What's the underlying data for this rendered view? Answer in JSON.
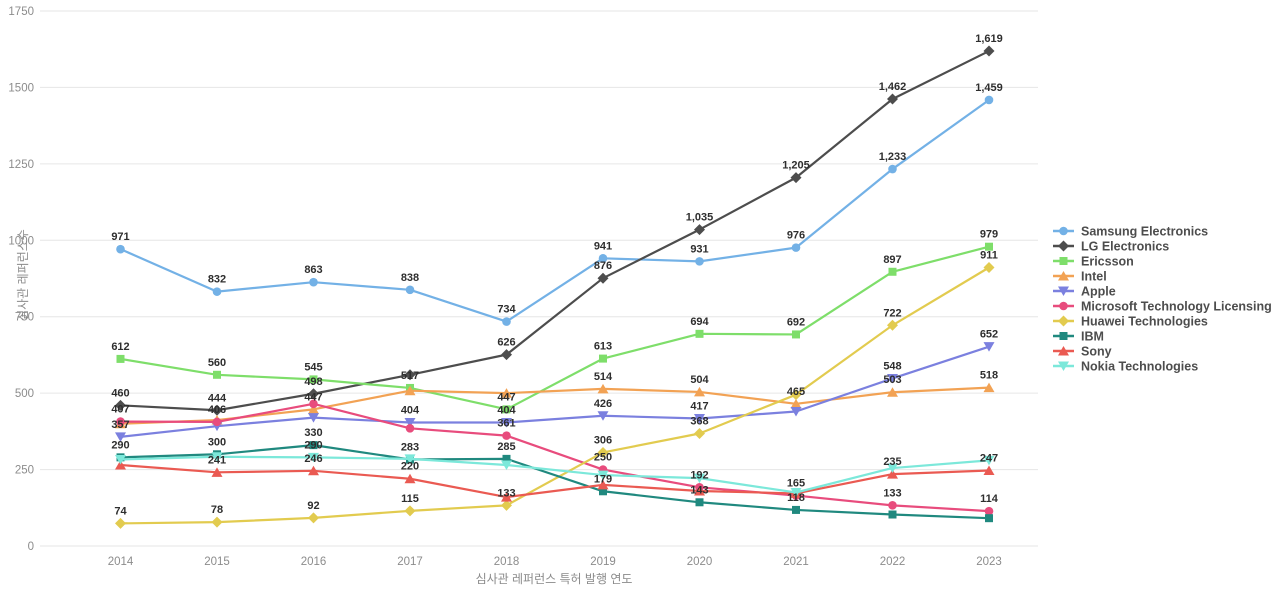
{
  "chart_data": {
    "type": "line",
    "title": "",
    "xlabel": "심사관 레퍼런스 특허 발행 연도",
    "ylabel": "심사관 레퍼런스수",
    "x": [
      2014,
      2015,
      2016,
      2017,
      2018,
      2019,
      2020,
      2021,
      2022,
      2023
    ],
    "ylim": [
      0,
      1750
    ],
    "yticks": [
      0,
      250,
      500,
      750,
      1000,
      1250,
      1500,
      1750
    ],
    "grid": true,
    "legend_position": "right",
    "series": [
      {
        "name": "Samsung Electronics",
        "color": "#73b1e6",
        "marker": "circle",
        "values": [
          971,
          832,
          863,
          838,
          734,
          941,
          931,
          976,
          1233,
          1459
        ],
        "labels": [
          "971",
          "832",
          "863",
          "838",
          "734",
          "941",
          "931",
          "976",
          "1,233",
          "1,459"
        ]
      },
      {
        "name": "LG Electronics",
        "color": "#4d4d4d",
        "marker": "diamond",
        "values": [
          460,
          444,
          498,
          560,
          626,
          876,
          1035,
          1205,
          1462,
          1619
        ],
        "labels": [
          "460",
          "444",
          "498",
          "",
          "626",
          "876",
          "1,035",
          "1,205",
          "1,462",
          "1,619"
        ]
      },
      {
        "name": "Ericsson",
        "color": "#7ede6a",
        "marker": "square",
        "values": [
          612,
          560,
          545,
          517,
          447,
          613,
          694,
          692,
          897,
          979
        ],
        "labels": [
          "612",
          "560",
          "545",
          "517",
          "447",
          "613",
          "694",
          "692",
          "897",
          "979"
        ]
      },
      {
        "name": "Intel",
        "color": "#f2a254",
        "marker": "triangle-up",
        "values": [
          400,
          412,
          447,
          508,
          500,
          514,
          504,
          465,
          503,
          518
        ],
        "labels": [
          "",
          "",
          "447",
          "",
          "",
          "514",
          "504",
          "465",
          "503",
          "518"
        ]
      },
      {
        "name": "Apple",
        "color": "#7b80df",
        "marker": "triangle-down",
        "values": [
          357,
          392,
          420,
          404,
          404,
          426,
          417,
          440,
          548,
          652
        ],
        "labels": [
          "357",
          "",
          "",
          "404",
          "404",
          "426",
          "417",
          "",
          "548",
          "652"
        ]
      },
      {
        "name": "Microsoft Technology Licensing",
        "color": "#e84c7d",
        "marker": "circle",
        "values": [
          407,
          406,
          465,
          385,
          361,
          250,
          192,
          165,
          133,
          114
        ],
        "labels": [
          "407",
          "406",
          "",
          "",
          "361",
          "250",
          "192",
          "165",
          "133",
          "114"
        ]
      },
      {
        "name": "Huawei Technologies",
        "color": "#e2cb4f",
        "marker": "diamond",
        "values": [
          74,
          78,
          92,
          115,
          133,
          306,
          368,
          495,
          722,
          911
        ],
        "labels": [
          "74",
          "78",
          "92",
          "115",
          "133",
          "306",
          "368",
          "",
          "722",
          "911"
        ]
      },
      {
        "name": "IBM",
        "color": "#20897f",
        "marker": "square",
        "values": [
          290,
          300,
          330,
          283,
          285,
          179,
          143,
          118,
          103,
          91
        ],
        "labels": [
          "290",
          "300",
          "330",
          "283",
          "285",
          "179",
          "143",
          "118",
          "",
          ""
        ]
      },
      {
        "name": "Sony",
        "color": "#ea5a52",
        "marker": "triangle-up",
        "values": [
          265,
          241,
          246,
          220,
          160,
          200,
          180,
          172,
          235,
          247
        ],
        "labels": [
          "",
          "241",
          "246",
          "220",
          "",
          "",
          "",
          "",
          "235",
          "247"
        ]
      },
      {
        "name": "Nokia Technologies",
        "color": "#7ce8da",
        "marker": "triangle-down",
        "values": [
          283,
          292,
          290,
          285,
          265,
          232,
          222,
          175,
          255,
          280
        ],
        "labels": [
          "",
          "",
          "290",
          "",
          "",
          "",
          "",
          "",
          "",
          ""
        ]
      }
    ]
  }
}
